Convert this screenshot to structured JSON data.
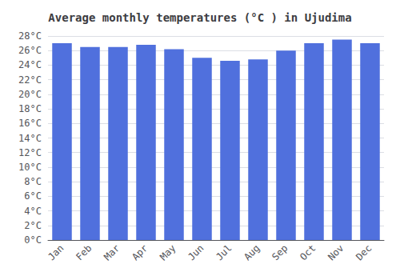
{
  "chart_data": {
    "type": "bar",
    "title": "Average monthly temperatures (°C ) in Ujudima",
    "categories": [
      "Jan",
      "Feb",
      "Mar",
      "Apr",
      "May",
      "Jun",
      "Jul",
      "Aug",
      "Sep",
      "Oct",
      "Nov",
      "Dec"
    ],
    "values": [
      27.0,
      26.5,
      26.5,
      26.8,
      26.2,
      25.0,
      24.6,
      24.8,
      26.0,
      27.0,
      27.5,
      27.0
    ],
    "ylim": [
      0,
      28
    ],
    "yticks": [
      {
        "value": 0,
        "label": "0°C"
      },
      {
        "value": 2,
        "label": "2°C"
      },
      {
        "value": 4,
        "label": "4°C"
      },
      {
        "value": 6,
        "label": "6°C"
      },
      {
        "value": 8,
        "label": "8°C"
      },
      {
        "value": 10,
        "label": "10°C"
      },
      {
        "value": 12,
        "label": "12°C"
      },
      {
        "value": 14,
        "label": "14°C"
      },
      {
        "value": 16,
        "label": "16°C"
      },
      {
        "value": 18,
        "label": "18°C"
      },
      {
        "value": 20,
        "label": "20°C"
      },
      {
        "value": 22,
        "label": "22°C"
      },
      {
        "value": 24,
        "label": "24°C"
      },
      {
        "value": 26,
        "label": "26°C"
      },
      {
        "value": 28,
        "label": "28°C"
      }
    ],
    "grid": true
  }
}
